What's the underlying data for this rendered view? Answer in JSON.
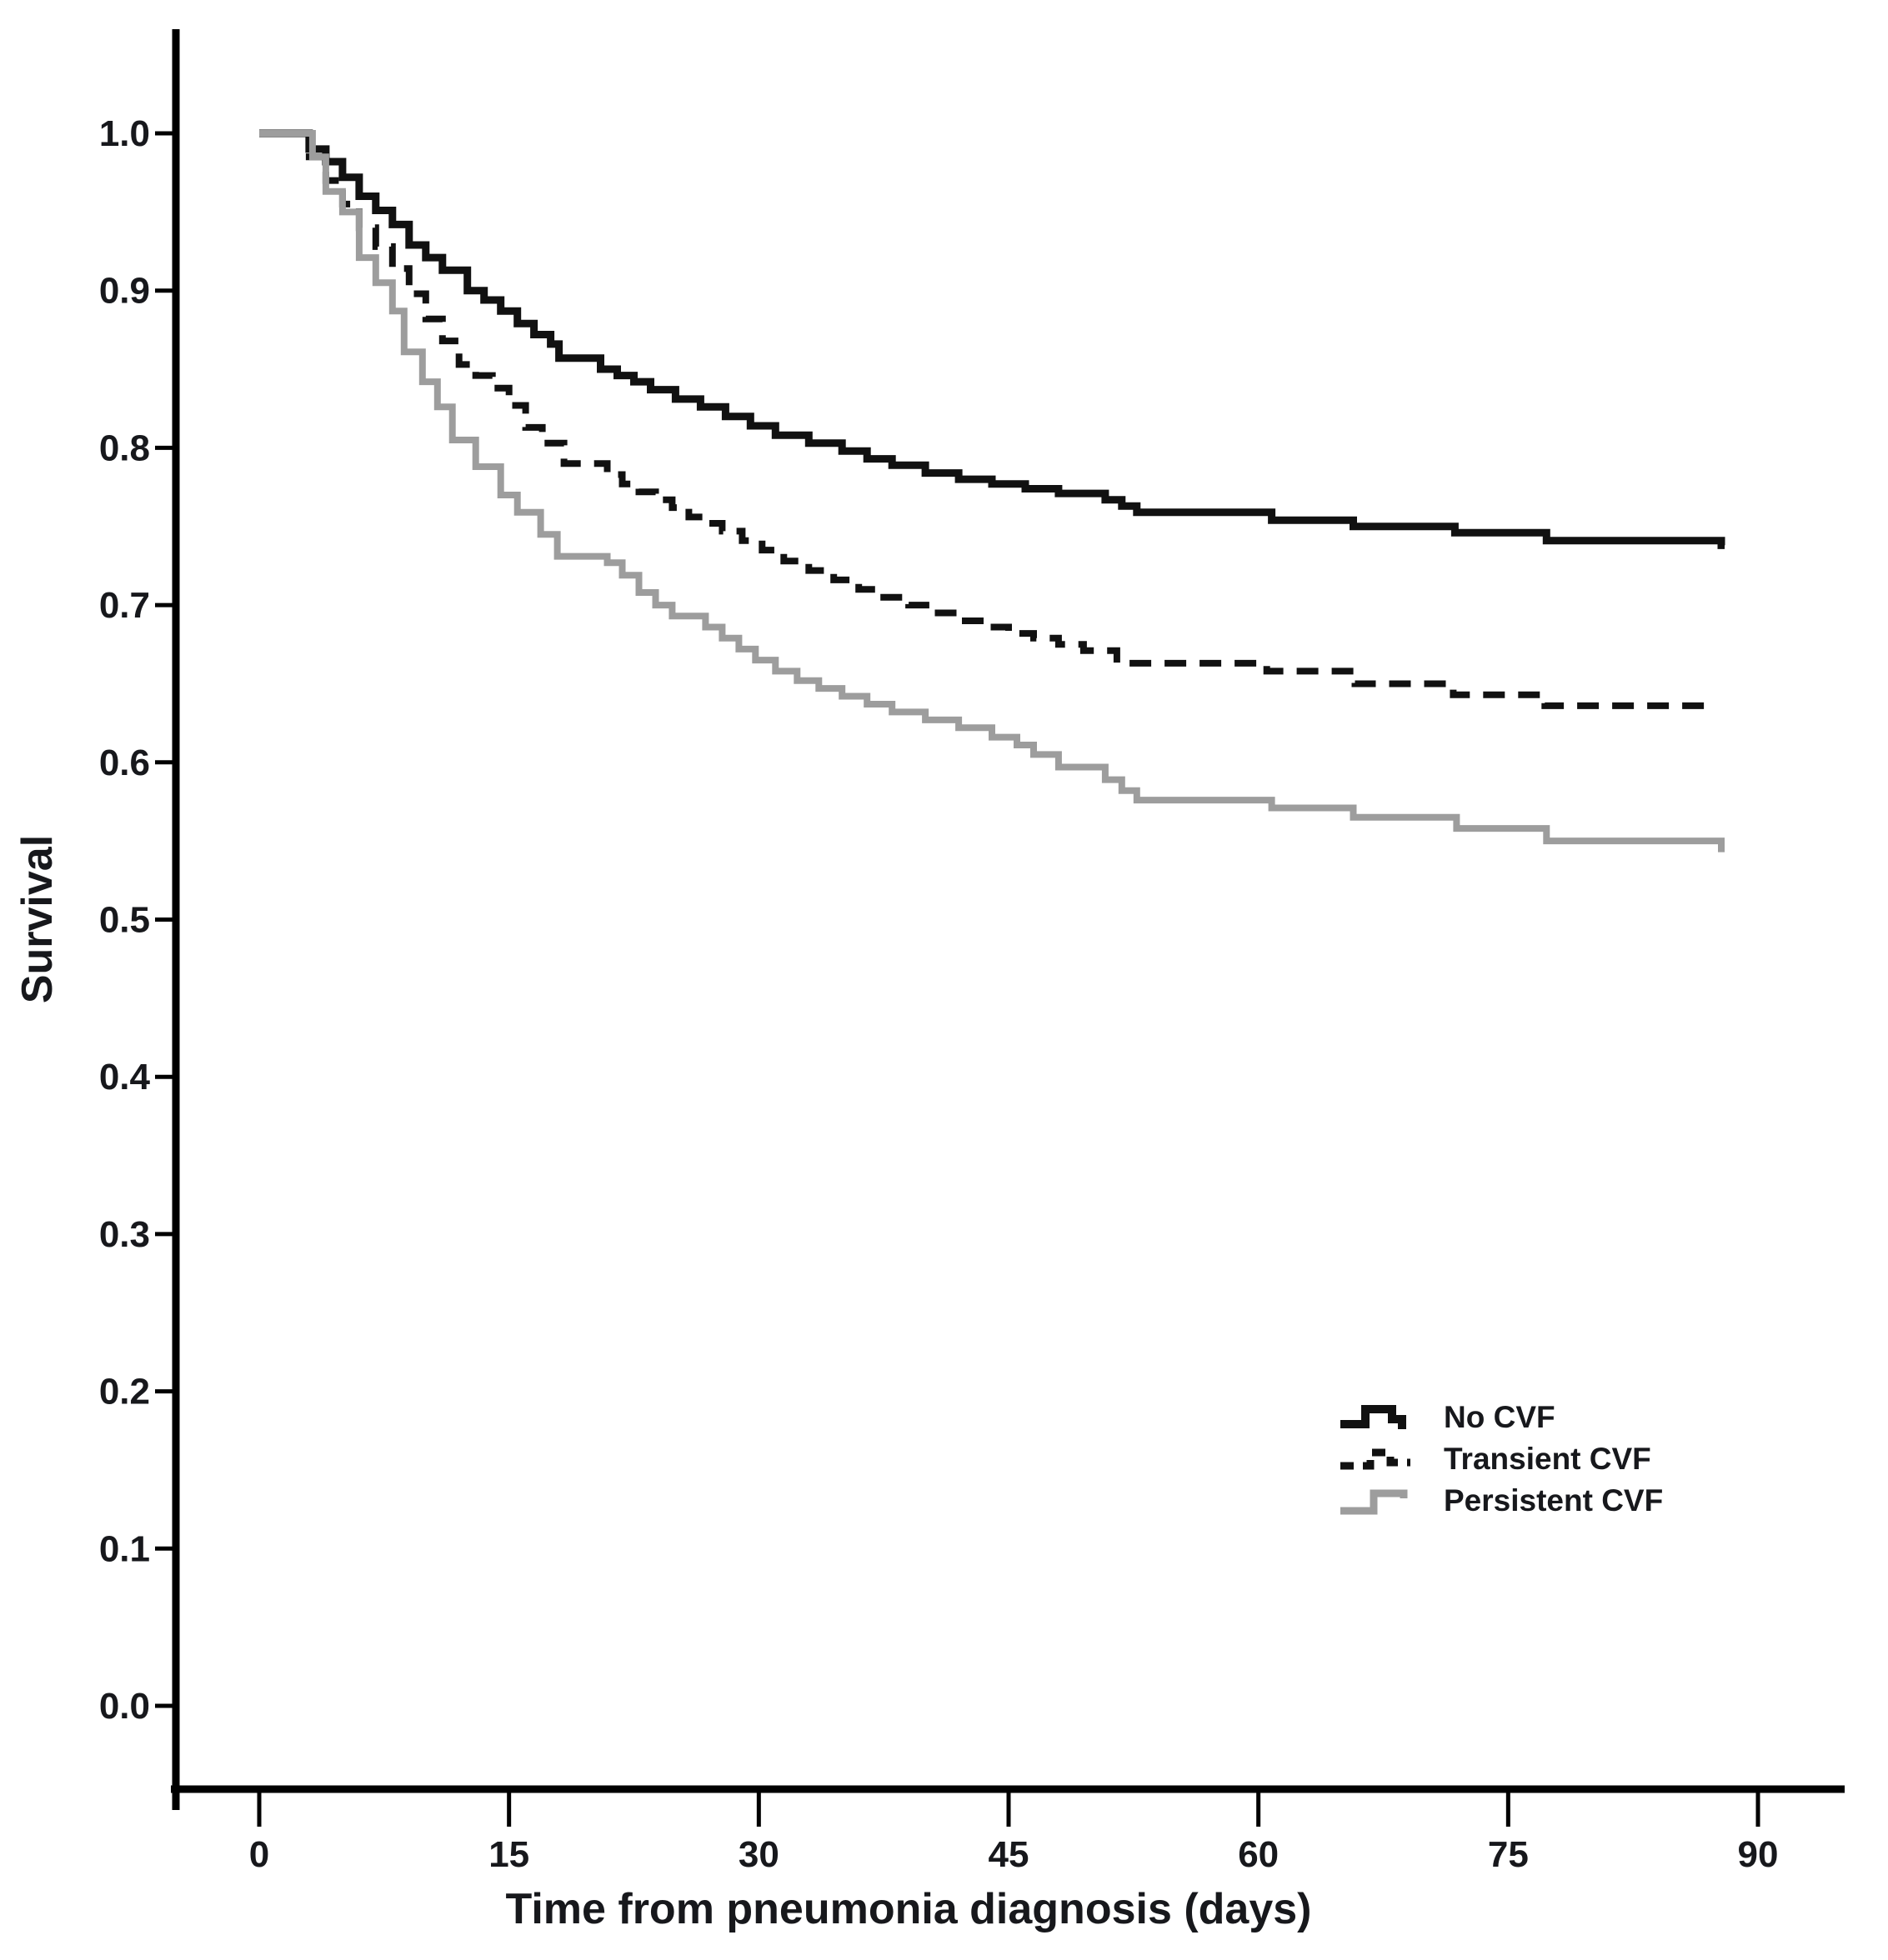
{
  "figure": {
    "background_color": "#ffffff",
    "axis_color": "#000000",
    "label_color": "#17181c"
  },
  "chart_data": {
    "type": "line",
    "subtype": "kaplan-meier-step-survival",
    "title": "",
    "xlabel": "Time from pneumonia diagnosis (days)",
    "ylabel": "Survival",
    "grid": false,
    "xlim": [
      -5,
      95
    ],
    "ylim": [
      -0.05,
      1.06
    ],
    "x_ticks": {
      "values": [
        0,
        15,
        30,
        45,
        60,
        75,
        90
      ],
      "labels": [
        "0",
        "15",
        "30",
        "45",
        "60",
        "75",
        "90"
      ]
    },
    "y_ticks": {
      "values": [
        0.0,
        0.1,
        0.2,
        0.3,
        0.4,
        0.5,
        0.6,
        0.7,
        0.8,
        0.9,
        1.0
      ],
      "labels": [
        "0.0",
        "0.1",
        "0.2",
        "0.3",
        "0.4",
        "0.5",
        "0.6",
        "0.7",
        "0.8",
        "0.9",
        "1.0"
      ]
    },
    "legend": {
      "position": "inside-lower-right",
      "entries": [
        "No CVF",
        "Transient CVF",
        "Persistent CVF"
      ]
    },
    "series": [
      {
        "name": "No CVF",
        "line_style": "solid",
        "color": "#111111",
        "stroke_width": 9,
        "end_day": 88,
        "points": [
          [
            0,
            1.0
          ],
          [
            3,
            0.99
          ],
          [
            4,
            0.982
          ],
          [
            5,
            0.972
          ],
          [
            6,
            0.96
          ],
          [
            7,
            0.951
          ],
          [
            8,
            0.942
          ],
          [
            9,
            0.929
          ],
          [
            10,
            0.921
          ],
          [
            11,
            0.913
          ],
          [
            12.5,
            0.9
          ],
          [
            13.5,
            0.894
          ],
          [
            14.5,
            0.887
          ],
          [
            15.5,
            0.879
          ],
          [
            16.5,
            0.872
          ],
          [
            17.5,
            0.866
          ],
          [
            18,
            0.857
          ],
          [
            20.5,
            0.85
          ],
          [
            21.5,
            0.846
          ],
          [
            22.5,
            0.842
          ],
          [
            23.5,
            0.837
          ],
          [
            25,
            0.831
          ],
          [
            26.5,
            0.826
          ],
          [
            28,
            0.82
          ],
          [
            29.5,
            0.814
          ],
          [
            31,
            0.808
          ],
          [
            33,
            0.803
          ],
          [
            35,
            0.798
          ],
          [
            36.5,
            0.793
          ],
          [
            38,
            0.789
          ],
          [
            40,
            0.784
          ],
          [
            42,
            0.78
          ],
          [
            44,
            0.777
          ],
          [
            46,
            0.774
          ],
          [
            48,
            0.771
          ],
          [
            50.8,
            0.767
          ],
          [
            51.8,
            0.763
          ],
          [
            52.7,
            0.759
          ],
          [
            60.8,
            0.754
          ],
          [
            65.7,
            0.75
          ],
          [
            71.8,
            0.746
          ],
          [
            77.3,
            0.741
          ],
          [
            87.8,
            0.738
          ]
        ]
      },
      {
        "name": "Transient CVF",
        "line_style": "dashed",
        "color": "#111111",
        "stroke_width": 8,
        "dash": "26 16",
        "end_day": 87.3,
        "points": [
          [
            0,
            1.0
          ],
          [
            3,
            0.985
          ],
          [
            4,
            0.97
          ],
          [
            5,
            0.955
          ],
          [
            6,
            0.94
          ],
          [
            7,
            0.928
          ],
          [
            8,
            0.914
          ],
          [
            9,
            0.898
          ],
          [
            10,
            0.882
          ],
          [
            11,
            0.868
          ],
          [
            12,
            0.853
          ],
          [
            13,
            0.846
          ],
          [
            14,
            0.838
          ],
          [
            15,
            0.827
          ],
          [
            16,
            0.813
          ],
          [
            17,
            0.803
          ],
          [
            18.3,
            0.79
          ],
          [
            20.9,
            0.783
          ],
          [
            21.8,
            0.777
          ],
          [
            22.8,
            0.772
          ],
          [
            23.8,
            0.767
          ],
          [
            24.8,
            0.762
          ],
          [
            25.8,
            0.756
          ],
          [
            26.8,
            0.752
          ],
          [
            27.8,
            0.747
          ],
          [
            29,
            0.741
          ],
          [
            30.2,
            0.735
          ],
          [
            31.5,
            0.728
          ],
          [
            33,
            0.722
          ],
          [
            34.5,
            0.716
          ],
          [
            36,
            0.71
          ],
          [
            37.5,
            0.705
          ],
          [
            39,
            0.7
          ],
          [
            40.5,
            0.695
          ],
          [
            42,
            0.69
          ],
          [
            43.5,
            0.686
          ],
          [
            45,
            0.682
          ],
          [
            46.5,
            0.679
          ],
          [
            48,
            0.675
          ],
          [
            49.5,
            0.671
          ],
          [
            51.5,
            0.663
          ],
          [
            60.5,
            0.658
          ],
          [
            65.8,
            0.65
          ],
          [
            71.7,
            0.643
          ],
          [
            77.2,
            0.636
          ]
        ]
      },
      {
        "name": "Persistent CVF",
        "line_style": "solid",
        "color": "#9d9d9d",
        "stroke_width": 8,
        "end_day": 88,
        "points": [
          [
            0,
            1.0
          ],
          [
            3.2,
            0.985
          ],
          [
            4,
            0.963
          ],
          [
            5,
            0.95
          ],
          [
            6,
            0.921
          ],
          [
            7,
            0.905
          ],
          [
            8,
            0.887
          ],
          [
            8.7,
            0.861
          ],
          [
            9.8,
            0.842
          ],
          [
            10.7,
            0.826
          ],
          [
            11.6,
            0.805
          ],
          [
            13,
            0.788
          ],
          [
            14.5,
            0.77
          ],
          [
            15.5,
            0.759
          ],
          [
            16.9,
            0.745
          ],
          [
            17.9,
            0.731
          ],
          [
            20.9,
            0.727
          ],
          [
            21.8,
            0.719
          ],
          [
            22.8,
            0.708
          ],
          [
            23.8,
            0.7
          ],
          [
            24.8,
            0.693
          ],
          [
            26.8,
            0.686
          ],
          [
            27.8,
            0.679
          ],
          [
            28.8,
            0.672
          ],
          [
            29.8,
            0.665
          ],
          [
            31,
            0.658
          ],
          [
            32.3,
            0.652
          ],
          [
            33.6,
            0.647
          ],
          [
            35,
            0.642
          ],
          [
            36.5,
            0.637
          ],
          [
            38,
            0.632
          ],
          [
            40,
            0.627
          ],
          [
            42,
            0.622
          ],
          [
            44,
            0.616
          ],
          [
            45.5,
            0.611
          ],
          [
            46.5,
            0.605
          ],
          [
            48,
            0.597
          ],
          [
            50.8,
            0.589
          ],
          [
            51.8,
            0.582
          ],
          [
            52.7,
            0.576
          ],
          [
            60.8,
            0.571
          ],
          [
            65.7,
            0.565
          ],
          [
            71.9,
            0.558
          ],
          [
            77.3,
            0.55
          ],
          [
            87.8,
            0.545
          ]
        ]
      }
    ]
  }
}
